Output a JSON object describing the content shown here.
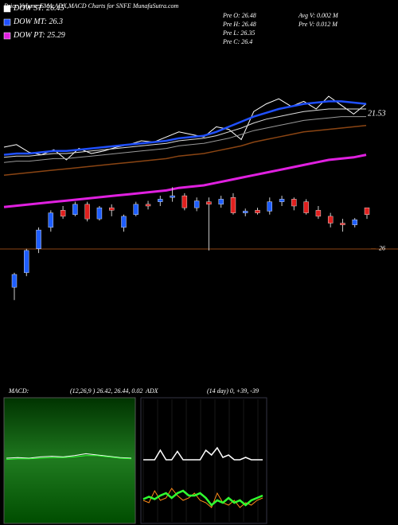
{
  "title": "Price,Volume,EMA,ADX,MACD Charts for SNFE MunafaSutra.com",
  "legend": [
    {
      "label": "DOW ST:",
      "value": 26.45,
      "color": "#ffffff"
    },
    {
      "label": "DOW MT:",
      "value": 26.3,
      "color": "#2050ff"
    },
    {
      "label": "DOW PT:",
      "value": 25.29,
      "color": "#e020e0"
    }
  ],
  "stats": [
    {
      "label": "Pre O:",
      "value": 26.48
    },
    {
      "label": "Pre H:",
      "value": 26.48
    },
    {
      "label": "Pre L:",
      "value": 26.35
    },
    {
      "label": "Pre C:",
      "value": 26.4
    }
  ],
  "volume_stats": [
    {
      "label": "Avg V:",
      "value": 0.002,
      "unit": "M"
    },
    {
      "label": "Pre V:",
      "value": 0.012,
      "unit": "M"
    }
  ],
  "chart_data": [
    {
      "type": "line",
      "annotation": "21.53",
      "ylim": [
        0,
        100
      ],
      "series": [
        {
          "color": "#ffffff",
          "width": 1,
          "values": [
            50,
            52,
            46,
            44,
            48,
            40,
            49,
            45,
            47,
            50,
            52,
            55,
            54,
            58,
            62,
            60,
            58,
            66,
            64,
            56,
            78,
            84,
            88,
            82,
            86,
            80,
            90,
            83,
            76,
            84
          ]
        },
        {
          "color": "#2050ff",
          "width": 2.5,
          "values": [
            44,
            45,
            45,
            46,
            47,
            47,
            48,
            49,
            50,
            51,
            52,
            53,
            54,
            55,
            57,
            58,
            59,
            62,
            66,
            70,
            74,
            77,
            80,
            82,
            84,
            85,
            86,
            86,
            85,
            84
          ]
        },
        {
          "color": "#dddddd",
          "width": 1,
          "values": [
            42,
            43,
            43,
            44,
            45,
            45,
            46,
            47,
            48,
            49,
            50,
            51,
            52,
            53,
            55,
            56,
            57,
            59,
            62,
            65,
            69,
            72,
            74,
            76,
            78,
            79,
            80,
            80,
            80,
            80
          ]
        },
        {
          "color": "#999999",
          "width": 1,
          "values": [
            38,
            39,
            39,
            40,
            41,
            41,
            42,
            43,
            44,
            45,
            46,
            47,
            48,
            49,
            51,
            52,
            53,
            55,
            57,
            60,
            63,
            65,
            67,
            69,
            71,
            72,
            73,
            74,
            74,
            74
          ]
        },
        {
          "color": "#8b4513",
          "width": 1.5,
          "values": [
            28,
            29,
            30,
            31,
            32,
            33,
            34,
            35,
            36,
            37,
            38,
            39,
            40,
            41,
            43,
            44,
            45,
            47,
            49,
            51,
            54,
            56,
            58,
            60,
            62,
            63,
            64,
            65,
            66,
            67
          ]
        },
        {
          "color": "#e020e0",
          "width": 3,
          "values": [
            3,
            4,
            5,
            6,
            7,
            8,
            9,
            10,
            11,
            12,
            13,
            14,
            15,
            16,
            18,
            19,
            20,
            22,
            24,
            26,
            28,
            30,
            32,
            34,
            36,
            38,
            40,
            41,
            42,
            44
          ]
        }
      ]
    },
    {
      "type": "candlestick",
      "ylim": [
        25.3,
        26.9
      ],
      "yticks": [
        26
      ],
      "up_color": "#1e5eff",
      "down_color": "#e0201e",
      "open": [
        25.55,
        25.72,
        26.0,
        26.25,
        26.45,
        26.4,
        26.52,
        26.35,
        26.48,
        26.25,
        26.4,
        26.52,
        26.55,
        26.6,
        26.62,
        26.48,
        26.55,
        26.52,
        26.6,
        26.42,
        26.45,
        26.44,
        26.55,
        26.58,
        26.55,
        26.45,
        26.38,
        26.3,
        26.28,
        26.48
      ],
      "high": [
        25.72,
        26.0,
        26.25,
        26.45,
        26.5,
        26.55,
        26.55,
        26.5,
        26.52,
        26.4,
        26.55,
        26.56,
        26.62,
        26.72,
        26.65,
        26.6,
        26.6,
        26.62,
        26.65,
        26.47,
        26.48,
        26.6,
        26.62,
        26.6,
        26.58,
        26.5,
        26.42,
        26.35,
        26.36,
        26.48
      ],
      "low": [
        25.4,
        25.68,
        25.95,
        26.2,
        26.35,
        26.38,
        26.32,
        26.33,
        26.38,
        26.2,
        26.38,
        26.46,
        26.5,
        26.55,
        26.45,
        26.44,
        25.98,
        26.48,
        26.4,
        26.38,
        26.4,
        26.4,
        26.5,
        26.45,
        26.4,
        26.35,
        26.25,
        26.2,
        26.25,
        26.35
      ],
      "close": [
        25.7,
        25.98,
        26.22,
        26.42,
        26.38,
        26.52,
        26.35,
        26.48,
        26.45,
        26.38,
        26.52,
        26.5,
        26.58,
        26.62,
        26.48,
        26.56,
        26.52,
        26.58,
        26.42,
        26.44,
        26.42,
        26.55,
        26.58,
        26.5,
        26.42,
        26.38,
        26.3,
        26.28,
        26.34,
        26.4
      ]
    },
    {
      "type": "line",
      "title": "MACD:",
      "subtitle": "(12,26,9 ) 26.42, 26.44, 0.02",
      "ylim": [
        -1,
        1
      ],
      "series": [
        {
          "color": "#ffffff",
          "width": 1,
          "values": [
            0.05,
            0.06,
            0.05,
            0.07,
            0.08,
            0.07,
            0.09,
            0.12,
            0.1,
            0.08,
            0.06,
            0.05
          ]
        },
        {
          "color": "#30ff30",
          "width": 1,
          "values": [
            0.03,
            0.04,
            0.04,
            0.05,
            0.06,
            0.06,
            0.07,
            0.09,
            0.09,
            0.07,
            0.05,
            0.04
          ]
        }
      ]
    },
    {
      "type": "line",
      "title": "ADX",
      "subtitle": "(14 day) 0, +39, -39",
      "ylim": [
        0,
        100
      ],
      "series": [
        {
          "color": "#ffffff",
          "width": 1.5,
          "values": [
            48,
            48,
            48,
            56,
            48,
            48,
            55,
            48,
            48,
            48,
            48,
            56,
            52,
            58,
            50,
            52,
            48,
            48,
            50,
            48,
            48,
            48
          ]
        },
        {
          "color": "#ff8c1a",
          "width": 1,
          "values": [
            14,
            12,
            22,
            14,
            16,
            24,
            18,
            14,
            16,
            20,
            14,
            12,
            8,
            20,
            12,
            10,
            14,
            8,
            12,
            10,
            14,
            16
          ]
        },
        {
          "color": "#30ff30",
          "width": 2.5,
          "values": [
            15,
            17,
            15,
            18,
            20,
            16,
            20,
            22,
            18,
            18,
            20,
            16,
            10,
            14,
            12,
            16,
            12,
            14,
            10,
            14,
            16,
            18
          ]
        }
      ]
    }
  ]
}
